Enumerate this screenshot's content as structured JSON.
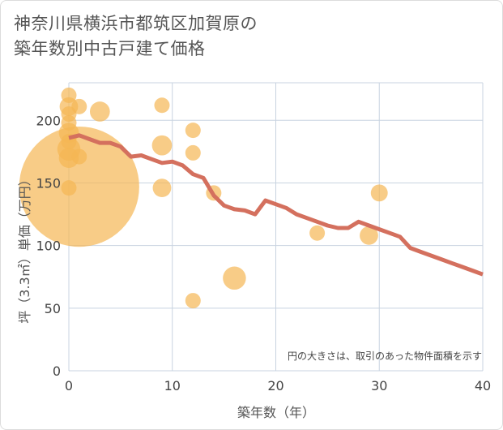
{
  "title": {
    "line1": "神奈川県横浜市都筑区加賀原の",
    "line2": "築年数別中古戸建て価格"
  },
  "colors": {
    "bubble": "#f5b754",
    "line": "#d4705e",
    "grid": "#c8d3e0",
    "background": "#ffffff"
  },
  "chart_data": {
    "type": "scatter",
    "xlabel": "築年数（年）",
    "ylabel": "坪（3.3㎡）単価（万円）",
    "xlim": [
      0,
      40
    ],
    "ylim": [
      0,
      230
    ],
    "xticks": [
      0,
      10,
      20,
      30,
      40
    ],
    "yticks": [
      0,
      50,
      100,
      150,
      200
    ],
    "grid": true,
    "note": "円の大きさは、取引のあった物件面積を示す",
    "bubbles": [
      {
        "x": 0,
        "y": 220,
        "size": 1
      },
      {
        "x": 0,
        "y": 211,
        "size": 1.2
      },
      {
        "x": 0,
        "y": 205,
        "size": 1
      },
      {
        "x": 0,
        "y": 198,
        "size": 1
      },
      {
        "x": 0,
        "y": 190,
        "size": 1.3
      },
      {
        "x": 0,
        "y": 183,
        "size": 1
      },
      {
        "x": 0,
        "y": 177,
        "size": 1.5
      },
      {
        "x": 0,
        "y": 170,
        "size": 1.3
      },
      {
        "x": 0,
        "y": 146,
        "size": 1
      },
      {
        "x": 1,
        "y": 211,
        "size": 1
      },
      {
        "x": 1,
        "y": 171,
        "size": 1
      },
      {
        "x": 1,
        "y": 147,
        "size": 7.8
      },
      {
        "x": 3,
        "y": 207,
        "size": 1.3
      },
      {
        "x": 9,
        "y": 212,
        "size": 1
      },
      {
        "x": 9,
        "y": 180,
        "size": 1.3
      },
      {
        "x": 9,
        "y": 146,
        "size": 1.2
      },
      {
        "x": 12,
        "y": 192,
        "size": 1
      },
      {
        "x": 12,
        "y": 174,
        "size": 1
      },
      {
        "x": 12,
        "y": 56,
        "size": 1
      },
      {
        "x": 14,
        "y": 142,
        "size": 1
      },
      {
        "x": 16,
        "y": 74,
        "size": 1.5
      },
      {
        "x": 24,
        "y": 110,
        "size": 1
      },
      {
        "x": 29,
        "y": 108,
        "size": 1.2
      },
      {
        "x": 30,
        "y": 142,
        "size": 1.1
      }
    ],
    "series": [
      {
        "x": [
          0,
          1,
          2,
          3,
          4,
          5,
          6,
          7,
          8,
          9,
          10,
          11,
          12,
          13,
          14,
          15,
          16,
          17,
          18,
          19,
          20,
          21,
          22,
          23,
          24,
          25,
          26,
          27,
          28,
          29,
          30,
          31,
          32,
          33,
          34,
          35,
          36,
          37,
          38,
          39,
          40
        ],
        "y": [
          186,
          188,
          185,
          182,
          182,
          179,
          171,
          172,
          169,
          166,
          167,
          164,
          157,
          154,
          140,
          132,
          129,
          128,
          125,
          136,
          133,
          130,
          125,
          122,
          119,
          116,
          114,
          114,
          119,
          116,
          113,
          110,
          107,
          98,
          95,
          92,
          89,
          86,
          83,
          80,
          77
        ]
      }
    ]
  }
}
